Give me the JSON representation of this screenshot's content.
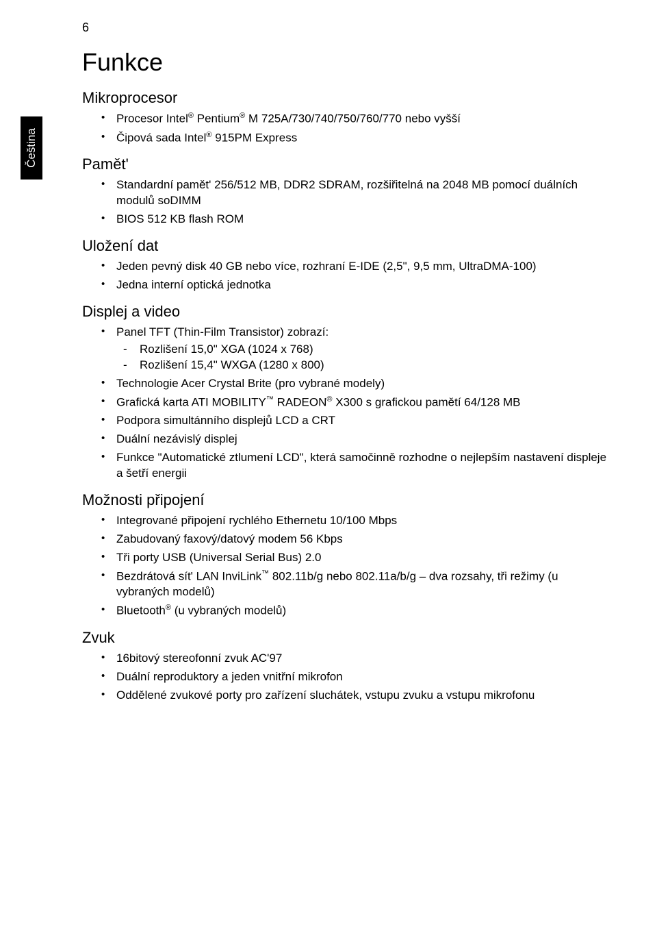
{
  "page_number": "6",
  "sidebar_label": "Čeština",
  "title": "Funkce",
  "sections": [
    {
      "heading": "Mikroprocesor",
      "items": [
        {
          "text": "Procesor Intel® Pentium® M 725A/730/740/750/760/770 nebo vyšší"
        },
        {
          "text": "Čipová sada Intel® 915PM Express"
        }
      ]
    },
    {
      "heading": "Pamět'",
      "items": [
        {
          "text": "Standardní pamět' 256/512 MB, DDR2 SDRAM, rozšiřitelná na 2048 MB pomocí duálních modulů soDIMM"
        },
        {
          "text": "BIOS 512 KB flash ROM"
        }
      ]
    },
    {
      "heading": "Uložení dat",
      "items": [
        {
          "text": "Jeden pevný disk 40 GB nebo více, rozhraní E-IDE (2,5\", 9,5 mm, UltraDMA-100)"
        },
        {
          "text": "Jedna interní optická jednotka"
        }
      ]
    },
    {
      "heading": "Displej a video",
      "items": [
        {
          "text": "Panel TFT (Thin-Film Transistor) zobrazí:",
          "sub": [
            "Rozlišení 15,0\" XGA (1024 x 768)",
            "Rozlišení 15,4\" WXGA (1280 x 800)"
          ]
        },
        {
          "text": "Technologie Acer Crystal Brite (pro vybrané modely)"
        },
        {
          "text": "Grafická karta ATI MOBILITY™ RADEON® X300 s grafickou pamětí 64/128 MB"
        },
        {
          "text": "Podpora simultánního displejů LCD a CRT"
        },
        {
          "text": "Duální nezávislý displej"
        },
        {
          "text": "Funkce \"Automatické ztlumení LCD\", která samočinně rozhodne o nejlepším nastavení displeje a šetří energii"
        }
      ]
    },
    {
      "heading": "Možnosti připojení",
      "items": [
        {
          "text": "Integrované připojení rychlého Ethernetu 10/100 Mbps"
        },
        {
          "text": "Zabudovaný faxový/datový modem 56 Kbps"
        },
        {
          "text": "Tři porty USB (Universal Serial Bus) 2.0"
        },
        {
          "text": "Bezdrátová sít' LAN InviLink™ 802.11b/g nebo 802.11a/b/g – dva rozsahy, tři režimy (u vybraných modelů)"
        },
        {
          "text": "Bluetooth® (u vybraných modelů)"
        }
      ]
    },
    {
      "heading": "Zvuk",
      "items": [
        {
          "text": "16bitový stereofonní zvuk AC'97"
        },
        {
          "text": "Duální reproduktory a jeden vnitřní mikrofon"
        },
        {
          "text": "Oddělené zvukové porty pro zařízení sluchátek, vstupu zvuku a vstupu mikrofonu"
        }
      ]
    }
  ]
}
